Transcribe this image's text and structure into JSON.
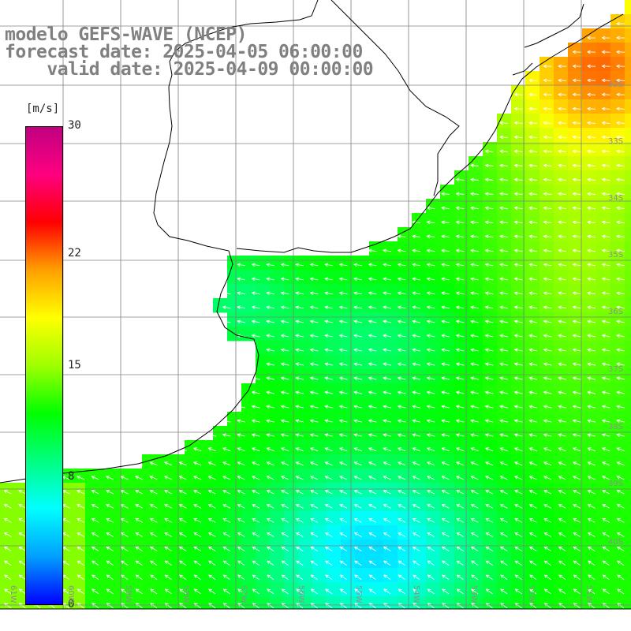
{
  "title": {
    "line1": "modelo GEFS-WAVE (NCEP)",
    "line2": "forecast date: 2025-04-05 06:00:00",
    "line3": "    valid date: 2025-04-09 00:00:00"
  },
  "colorbar": {
    "unit": "[m/s]",
    "ticks": [
      {
        "label": "30",
        "value": 30
      },
      {
        "label": "22",
        "value": 22
      },
      {
        "label": "15",
        "value": 15
      },
      {
        "label": "8",
        "value": 8
      },
      {
        "label": "0",
        "value": 0
      }
    ],
    "range": [
      0,
      30
    ],
    "colors": [
      "#0000ff",
      "#00a0ff",
      "#00ffff",
      "#00ff80",
      "#00ff00",
      "#a0ff00",
      "#ffff00",
      "#ffa000",
      "#ff0000",
      "#ff0080",
      "#c00080"
    ]
  },
  "lat_labels": [
    "32S",
    "33S",
    "34S",
    "35S",
    "36S",
    "37S",
    "38S",
    "39S",
    "40S"
  ],
  "lon_labels": [
    "61W",
    "60W",
    "59W",
    "58W",
    "57W",
    "56W",
    "55W",
    "54W",
    "53W",
    "52W",
    "51W"
  ],
  "colors": {
    "land": "#ffffff",
    "grid": "#808080",
    "coast": "#000000",
    "arrows": "#ffffff",
    "title_text": "#808080"
  }
}
